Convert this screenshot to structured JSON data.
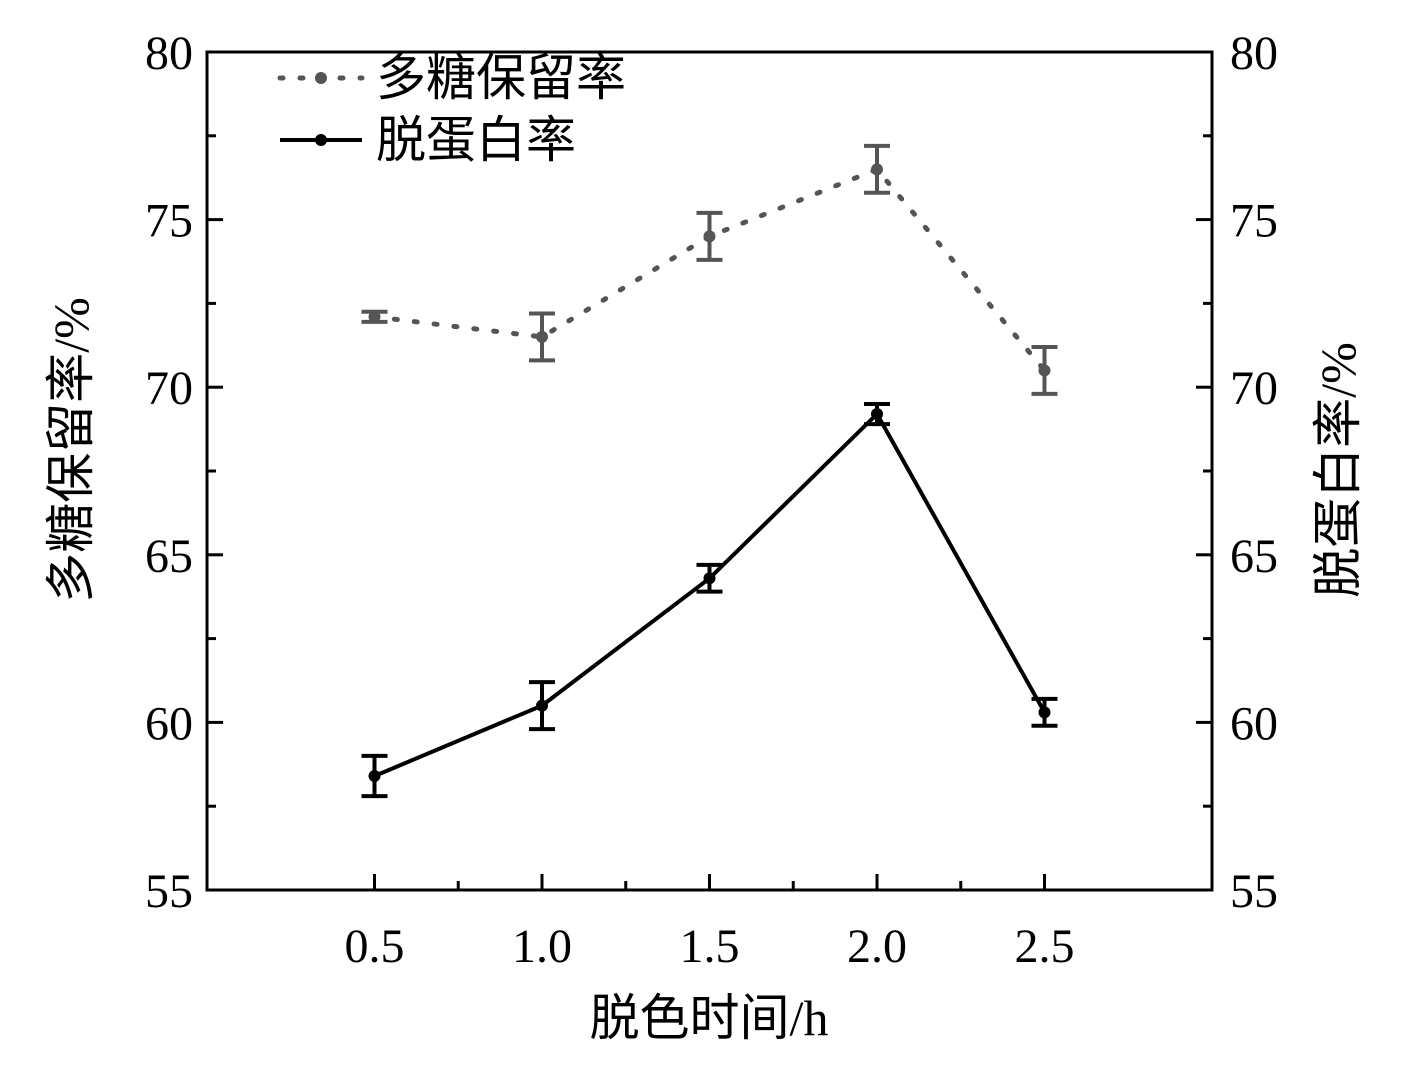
{
  "chart_data": {
    "type": "line",
    "xlabel": "脱色时间/h",
    "ylabel_left": "多糖保留率/%",
    "ylabel_right": "脱蛋白率/%",
    "x": [
      0.5,
      1.0,
      1.5,
      2.0,
      2.5
    ],
    "x_tick_labels": [
      "0.5",
      "1.0",
      "1.5",
      "2.0",
      "2.5"
    ],
    "xlim": [
      0.0,
      3.0
    ],
    "ylim": [
      55,
      80
    ],
    "y_ticks": [
      55,
      60,
      65,
      70,
      75,
      80
    ],
    "y_tick_labels": [
      "55",
      "60",
      "65",
      "70",
      "75",
      "80"
    ],
    "grid": false,
    "legend_position": "top-left",
    "series": [
      {
        "name": "多糖保留率",
        "axis": "left",
        "style": "dotted",
        "color": "#555555",
        "values": [
          72.1,
          71.5,
          74.5,
          76.5,
          70.5
        ],
        "errors": [
          0.15,
          0.7,
          0.7,
          0.7,
          0.7
        ]
      },
      {
        "name": "脱蛋白率",
        "axis": "right",
        "style": "solid",
        "color": "#000000",
        "values": [
          58.4,
          60.5,
          64.3,
          69.2,
          60.3
        ],
        "errors": [
          0.6,
          0.7,
          0.4,
          0.3,
          0.4
        ]
      }
    ]
  }
}
